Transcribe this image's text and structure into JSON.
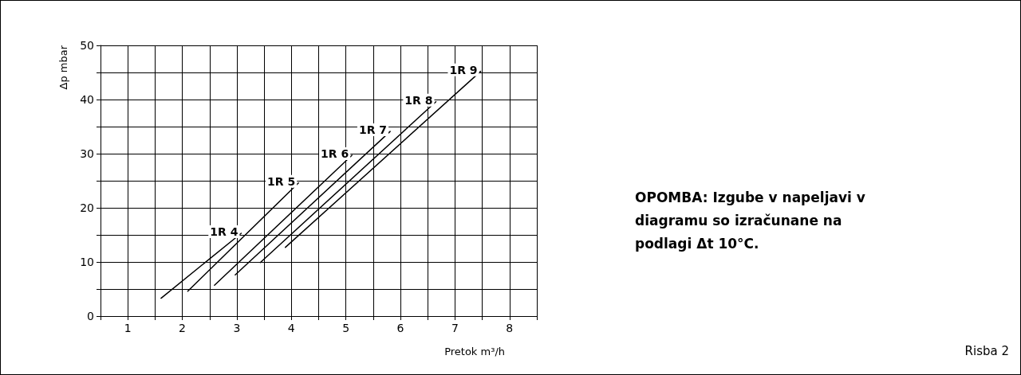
{
  "chart_data": {
    "type": "line",
    "xlabel": "Pretok m³/h",
    "ylabel": "Δp mbar",
    "xlim": [
      0.5,
      8.5
    ],
    "xticks": [
      {
        "value": 0.5,
        "label": null
      },
      1,
      {
        "value": 1.5,
        "label": null
      },
      2,
      {
        "value": 2.5,
        "label": null
      },
      3,
      {
        "value": 3.5,
        "label": null
      },
      4,
      {
        "value": 4.5,
        "label": null
      },
      5,
      {
        "value": 5.5,
        "label": null
      },
      6,
      {
        "value": 6.5,
        "label": null
      },
      7,
      {
        "value": 7.5,
        "label": null
      },
      8,
      {
        "value": 8.5,
        "label": null
      }
    ],
    "ylim": [
      0,
      50
    ],
    "yticks": [
      0,
      {
        "value": 5,
        "label": null
      },
      10,
      {
        "value": 15,
        "label": null
      },
      20,
      {
        "value": 25,
        "label": null
      },
      30,
      {
        "value": 35,
        "label": null
      },
      40,
      {
        "value": 45,
        "label": null
      },
      50
    ],
    "grid": true,
    "marker": "none",
    "line_style": "solid",
    "legend": false,
    "series": [
      {
        "name": "1R 4",
        "color": "#000000",
        "x": [
          1.61,
          3.08
        ],
        "values": [
          3.3,
          15.3
        ]
      },
      {
        "name": "1R 5",
        "color": "#000000",
        "x": [
          2.1,
          4.13
        ],
        "values": [
          4.6,
          24.6
        ]
      },
      {
        "name": "1R 6",
        "color": "#000000",
        "x": [
          2.59,
          5.11
        ],
        "values": [
          5.7,
          29.7
        ]
      },
      {
        "name": "1R 7",
        "color": "#000000",
        "x": [
          2.97,
          5.81
        ],
        "values": [
          7.6,
          34.1
        ]
      },
      {
        "name": "1R 8",
        "color": "#000000",
        "x": [
          3.43,
          6.65
        ],
        "values": [
          9.9,
          39.6
        ]
      },
      {
        "name": "1R 9",
        "color": "#000000",
        "x": [
          3.89,
          7.47
        ],
        "values": [
          12.7,
          45.2
        ]
      }
    ],
    "annotations": [
      "OPOMBA: Izgube v napeljavi v diagramu so izračunane na podlagi Δt 10°C.",
      "Risba 2"
    ]
  }
}
